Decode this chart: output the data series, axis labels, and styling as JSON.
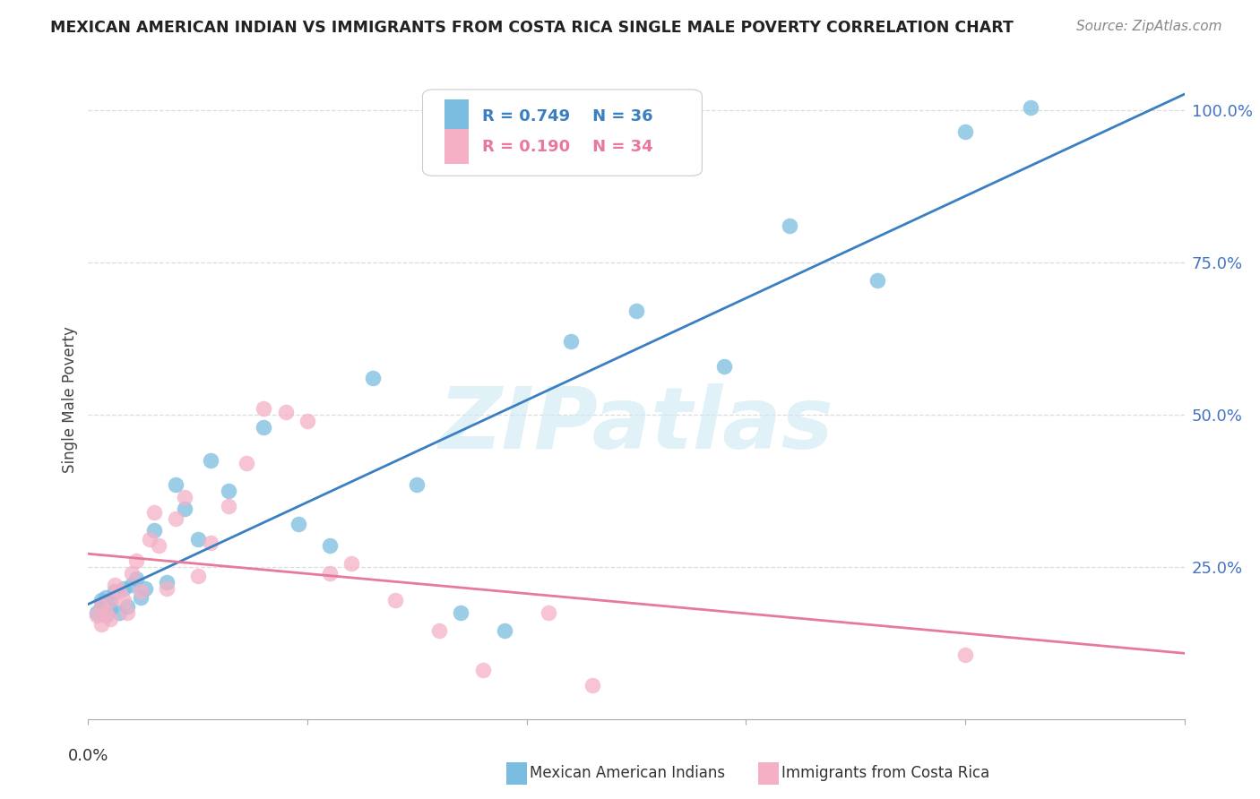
{
  "title": "MEXICAN AMERICAN INDIAN VS IMMIGRANTS FROM COSTA RICA SINGLE MALE POVERTY CORRELATION CHART",
  "source": "Source: ZipAtlas.com",
  "ylabel": "Single Male Poverty",
  "xmin": 0.0,
  "xmax": 0.25,
  "ymin": 0.0,
  "ymax": 1.05,
  "legend_r1": "R = 0.749",
  "legend_n1": "N = 36",
  "legend_r2": "R = 0.190",
  "legend_n2": "N = 34",
  "blue_color": "#7bbde0",
  "pink_color": "#f5b0c5",
  "blue_line_color": "#3a7fc1",
  "pink_line_color": "#e8799a",
  "watermark_color": "#cce8f4",
  "watermark": "ZIPatlas",
  "grid_color": "#dddddd",
  "blue_scatter_x": [
    0.002,
    0.003,
    0.003,
    0.004,
    0.004,
    0.005,
    0.005,
    0.006,
    0.007,
    0.008,
    0.009,
    0.01,
    0.011,
    0.012,
    0.013,
    0.015,
    0.018,
    0.02,
    0.022,
    0.025,
    0.028,
    0.032,
    0.04,
    0.048,
    0.055,
    0.065,
    0.075,
    0.085,
    0.095,
    0.11,
    0.125,
    0.145,
    0.16,
    0.18,
    0.2,
    0.215
  ],
  "blue_scatter_y": [
    0.175,
    0.185,
    0.195,
    0.17,
    0.2,
    0.18,
    0.195,
    0.21,
    0.175,
    0.215,
    0.185,
    0.22,
    0.23,
    0.2,
    0.215,
    0.31,
    0.225,
    0.385,
    0.345,
    0.295,
    0.425,
    0.375,
    0.48,
    0.32,
    0.285,
    0.56,
    0.385,
    0.175,
    0.145,
    0.62,
    0.67,
    0.58,
    0.81,
    0.72,
    0.965,
    1.005
  ],
  "pink_scatter_x": [
    0.002,
    0.003,
    0.003,
    0.004,
    0.005,
    0.005,
    0.006,
    0.007,
    0.008,
    0.009,
    0.01,
    0.011,
    0.012,
    0.014,
    0.015,
    0.016,
    0.018,
    0.02,
    0.022,
    0.025,
    0.028,
    0.032,
    0.036,
    0.04,
    0.045,
    0.05,
    0.055,
    0.06,
    0.07,
    0.08,
    0.09,
    0.105,
    0.115,
    0.2
  ],
  "pink_scatter_y": [
    0.17,
    0.185,
    0.155,
    0.175,
    0.195,
    0.165,
    0.22,
    0.21,
    0.195,
    0.175,
    0.24,
    0.26,
    0.21,
    0.295,
    0.34,
    0.285,
    0.215,
    0.33,
    0.365,
    0.235,
    0.29,
    0.35,
    0.42,
    0.51,
    0.505,
    0.49,
    0.24,
    0.255,
    0.195,
    0.145,
    0.08,
    0.175,
    0.055,
    0.105
  ]
}
